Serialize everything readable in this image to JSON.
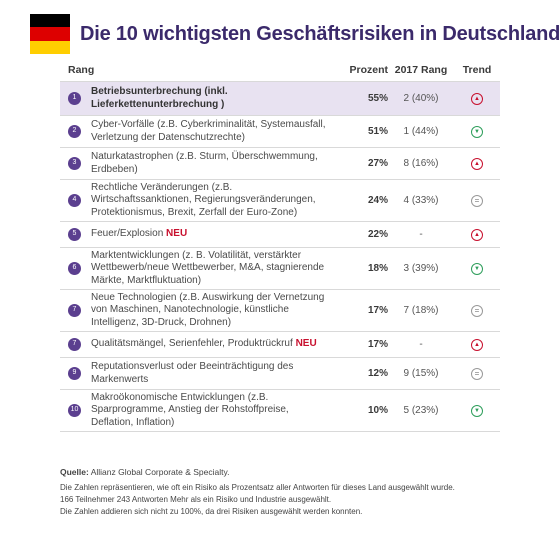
{
  "header": {
    "title": "Die 10 wichtigsten Geschäftsrisiken in Deutschland",
    "flag_colors": [
      "#000000",
      "#dd0000",
      "#ffce00"
    ]
  },
  "table": {
    "columns": {
      "rank": "Rang",
      "percent": "Prozent",
      "rank2017": "2017 Rang",
      "trend": "Trend"
    },
    "rows": [
      {
        "num": "1",
        "text": "Betriebsunterbrechung (inkl. Lieferkettenunterbrechung )",
        "new": "",
        "percent": "55%",
        "rank2017": "2 (40%)",
        "trend": "up",
        "trend_icon": "up-arrow-icon",
        "highlight": true
      },
      {
        "num": "2",
        "text": "Cyber-Vorfälle (z.B. Cyberkriminalität, Systemausfall, Verletzung der Datenschutzrechte)",
        "new": "",
        "percent": "51%",
        "rank2017": "1 (44%)",
        "trend": "down",
        "trend_icon": "down-arrow-icon",
        "highlight": false
      },
      {
        "num": "3",
        "text": "Naturkatastrophen (z.B. Sturm, Überschwemmung, Erdbeben)",
        "new": "",
        "percent": "27%",
        "rank2017": "8 (16%)",
        "trend": "up",
        "trend_icon": "up-arrow-icon",
        "highlight": false
      },
      {
        "num": "4",
        "text": "Rechtliche Veränderungen (z.B. Wirtschaftssanktionen, Regierungsveränderungen, Protektionismus, Brexit, Zerfall der Euro-Zone)",
        "new": "",
        "percent": "24%",
        "rank2017": "4 (33%)",
        "trend": "eq",
        "trend_icon": "equal-icon",
        "highlight": false
      },
      {
        "num": "5",
        "text": "Feuer/Explosion",
        "new": "NEU",
        "percent": "22%",
        "rank2017": "-",
        "trend": "up",
        "trend_icon": "up-arrow-icon",
        "highlight": false
      },
      {
        "num": "6",
        "text": "Marktentwicklungen (z. B. Volatilität, verstärkter Wettbewerb/neue Wettbewerber, M&A, stagnierende Märkte, Marktfluktuation)",
        "new": "",
        "percent": "18%",
        "rank2017": "3 (39%)",
        "trend": "down",
        "trend_icon": "down-arrow-icon",
        "highlight": false
      },
      {
        "num": "7",
        "text": "Neue Technologien (z.B. Auswirkung der Vernetzung von Maschinen, Nanotechnologie, künstliche Intelligenz, 3D-Druck, Drohnen)",
        "new": "",
        "percent": "17%",
        "rank2017": "7 (18%)",
        "trend": "eq",
        "trend_icon": "equal-icon",
        "highlight": false
      },
      {
        "num": "7",
        "text": "Qualitätsmängel, Serienfehler, Produktrückruf",
        "new": "NEU",
        "percent": "17%",
        "rank2017": "-",
        "trend": "up",
        "trend_icon": "up-arrow-icon",
        "highlight": false
      },
      {
        "num": "9",
        "text": "Reputationsverlust oder Beeinträchtigung des Markenwerts",
        "new": "",
        "percent": "12%",
        "rank2017": "9 (15%)",
        "trend": "eq",
        "trend_icon": "equal-icon",
        "highlight": false
      },
      {
        "num": "10",
        "text": "Makroökonomische Entwicklungen (z.B. Sparprogramme, Anstieg der Rohstoffpreise, Deflation, Inflation)",
        "new": "",
        "percent": "10%",
        "rank2017": "5 (23%)",
        "trend": "down",
        "trend_icon": "down-arrow-icon",
        "highlight": false
      }
    ]
  },
  "footer": {
    "source_label": "Quelle:",
    "source_text": "Allianz Global Corporate & Specialty.",
    "notes": [
      "Die Zahlen repräsentieren, wie oft  ein Risiko als Prozentsatz aller  Antworten für dieses Land ausgewählt wurde.",
      "166 Teilnehmer 243 Antworten  Mehr als ein Risiko und Industrie  ausgewählt.",
      "Die Zahlen addieren sich nicht zu 100%, da drei Risiken ausgewählt werden konnten."
    ]
  },
  "colors": {
    "title": "#3b2a6b",
    "badge": "#5b3f8f",
    "highlight_row": "#e8e2f1",
    "new_label": "#c8102e",
    "trend_up": "#c8102e",
    "trend_down": "#2e9e5b",
    "trend_eq": "#999999"
  }
}
